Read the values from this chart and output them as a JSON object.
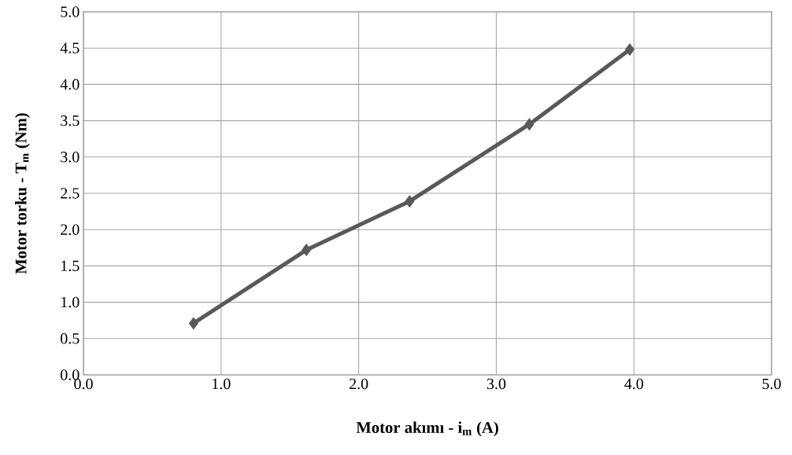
{
  "chart_data": {
    "type": "line",
    "xlabel": "Motor akımı - i$_{m}$ (A)",
    "ylabel": "Motor torku - T$_{m}$ (Nm)",
    "x": [
      0.8,
      1.62,
      2.37,
      3.24,
      3.97
    ],
    "series": [
      {
        "color": "#595959",
        "values": [
          0.71,
          1.72,
          2.39,
          3.45,
          4.48
        ]
      }
    ],
    "xlim": [
      0,
      5
    ],
    "ylim": [
      0,
      5
    ],
    "xticks": [
      {
        "value": 0,
        "label": "0.0"
      },
      {
        "value": 1,
        "label": "1.0"
      },
      {
        "value": 2,
        "label": "2.0"
      },
      {
        "value": 3,
        "label": "3.0"
      },
      {
        "value": 4,
        "label": "4.0"
      },
      {
        "value": 5,
        "label": "5.0"
      }
    ],
    "yticks": [
      {
        "value": 0,
        "label": "0.0"
      },
      {
        "value": 0.5,
        "label": "0.5"
      },
      {
        "value": 1,
        "label": "1.0"
      },
      {
        "value": 1.5,
        "label": "1.5"
      },
      {
        "value": 2,
        "label": "2.0"
      },
      {
        "value": 2.5,
        "label": "2.5"
      },
      {
        "value": 3,
        "label": "3.0"
      },
      {
        "value": 3.5,
        "label": "3.5"
      },
      {
        "value": 4,
        "label": "4.0"
      },
      {
        "value": 4.5,
        "label": "4.5"
      },
      {
        "value": 5,
        "label": "5.0"
      }
    ],
    "grid": true,
    "marker": "diamond",
    "line_style": "solid"
  }
}
